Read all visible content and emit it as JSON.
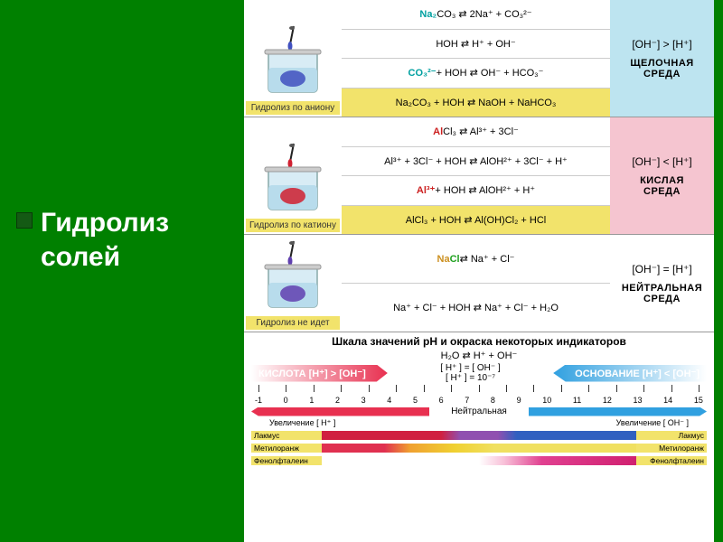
{
  "title_line1": "Гидролиз",
  "title_line2": "солей",
  "rows": [
    {
      "beaker_caption": "Гидролиз по аниону",
      "indicator_color": "#4050c0",
      "eqs": [
        {
          "html": "<span class='colored-na'>Na₂</span>CO₃ ⇄ 2Na⁺ + CO₃²⁻",
          "yellow": false
        },
        {
          "html": "HOH ⇄ H⁺ + OH⁻",
          "yellow": false
        },
        {
          "html": "<span class='colored-co3'>CO₃²⁻</span> + HOH ⇄ OH⁻ + HCO₃⁻",
          "yellow": false
        },
        {
          "html": "Na₂CO₃ + HOH ⇄ NaOH + NaHCO₃",
          "yellow": true
        }
      ],
      "env_class": "env-blue",
      "env_ion": "[OH⁻] > [H⁺]",
      "env_name": "ЩЕЛОЧНАЯ СРЕДА"
    },
    {
      "beaker_caption": "Гидролиз по катиону",
      "indicator_color": "#d02030",
      "eqs": [
        {
          "html": "<span class='colored-al'>Al</span>Cl₃ ⇄ Al³⁺ + 3Cl⁻",
          "yellow": false
        },
        {
          "html": "Al³⁺ + 3Cl⁻ + HOH ⇄ AlOH²⁺ + 3Cl⁻ + H⁺",
          "yellow": false
        },
        {
          "html": "<span class='colored-al'>Al³⁺</span> + HOH ⇄ AlOH²⁺ + H⁺",
          "yellow": false
        },
        {
          "html": "AlCl₃ + HOH ⇄ Al(OH)Cl₂ + HCl",
          "yellow": true
        }
      ],
      "env_class": "env-pink",
      "env_ion": "[OH⁻] < [H⁺]",
      "env_name": "КИСЛАЯ СРЕДА"
    },
    {
      "beaker_caption": "Гидролиз не идет",
      "indicator_color": "#6040b0",
      "eqs": [
        {
          "html": "<span class='colored-nacl'>Na</span><span class='cl-green'>Cl</span> ⇄ Na⁺ + Cl⁻",
          "yellow": false
        },
        {
          "html": "Na⁺ + Cl⁻ + HOH ⇄ Na⁺ + Cl⁻ + H₂O",
          "yellow": false
        }
      ],
      "env_class": "env-white",
      "env_ion": "[OH⁻] = [H⁺]",
      "env_name": "НЕЙТРАЛЬНАЯ СРЕДА"
    }
  ],
  "ph": {
    "title": "Шкала значений pH и окраска некоторых индикаторов",
    "water_eq": "H₂O ⇄ H⁺ + OH⁻",
    "acid_label": "КИСЛОТА [H⁺] > [OH⁻]",
    "base_label": "ОСНОВАНИЕ [H⁺] < [OH⁻]",
    "center_eq1": "[ H⁺ ] = [ OH⁻ ]",
    "center_eq2": "[ H⁺ ] = 10⁻⁷",
    "scale": [
      "-1",
      "0",
      "1",
      "2",
      "3",
      "4",
      "5",
      "6",
      "7",
      "8",
      "9",
      "10",
      "11",
      "12",
      "13",
      "14",
      "15"
    ],
    "inc_h": "Увеличение [ H⁺ ]",
    "neutral": "Нейтральная",
    "inc_oh": "Увеличение [ OH⁻ ]",
    "indicators": [
      {
        "name": "Лакмус",
        "barClass": "lakmus"
      },
      {
        "name": "Метилоранж",
        "barClass": "metilorange"
      },
      {
        "name": "Фенолфталеин",
        "barClass": "fenol"
      }
    ]
  },
  "colors": {
    "page_bg": "#008000",
    "yellow": "#f2e36b",
    "env_blue": "#bde4f0",
    "env_pink": "#f5c5d0",
    "scale_red": "#e83050",
    "scale_blue": "#30a0e0"
  }
}
